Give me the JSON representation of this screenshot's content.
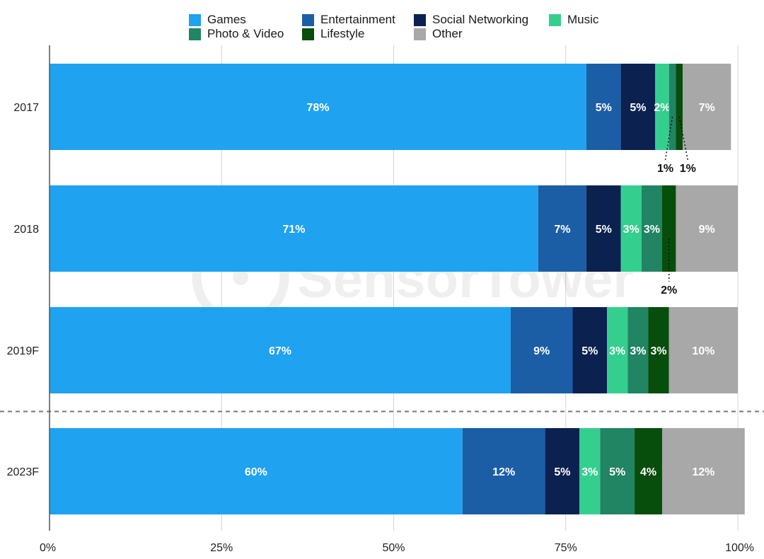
{
  "chart_data": {
    "type": "bar",
    "orientation": "horizontal",
    "stacked": true,
    "title": "",
    "xlabel": "",
    "ylabel": "",
    "xlim": [
      0,
      100
    ],
    "x_ticks": [
      "0%",
      "25%",
      "50%",
      "75%",
      "100%"
    ],
    "categories": [
      "2017",
      "2018",
      "2019F",
      "2023F"
    ],
    "series": [
      {
        "name": "Games",
        "color": "#1fa2f0",
        "values": [
          78,
          71,
          67,
          60
        ],
        "labels": [
          "78%",
          "71%",
          "67%",
          "60%"
        ]
      },
      {
        "name": "Entertainment",
        "color": "#1b5ea6",
        "values": [
          5,
          7,
          9,
          12
        ],
        "labels": [
          "5%",
          "7%",
          "9%",
          "12%"
        ]
      },
      {
        "name": "Social Networking",
        "color": "#0b2150",
        "values": [
          5,
          5,
          5,
          5
        ],
        "labels": [
          "5%",
          "5%",
          "5%",
          "5%"
        ]
      },
      {
        "name": "Music",
        "color": "#34cf8f",
        "values": [
          2,
          3,
          3,
          3
        ],
        "labels": [
          "2%",
          "3%",
          "3%",
          "3%"
        ]
      },
      {
        "name": "Photo & Video",
        "color": "#218463",
        "values": [
          1,
          3,
          3,
          5
        ],
        "labels": [
          "1%",
          "3%",
          "3%",
          "5%"
        ]
      },
      {
        "name": "Lifestyle",
        "color": "#074d0b",
        "values": [
          1,
          2,
          3,
          4
        ],
        "labels": [
          "1%",
          "2%",
          "3%",
          "4%"
        ]
      },
      {
        "name": "Other",
        "color": "#a8a8a8",
        "values": [
          7,
          9,
          10,
          12
        ],
        "labels": [
          "7%",
          "9%",
          "10%",
          "12%"
        ]
      }
    ],
    "callouts": [
      {
        "category": "2017",
        "series": "Photo & Video",
        "label": "1%"
      },
      {
        "category": "2017",
        "series": "Lifestyle",
        "label": "1%"
      },
      {
        "category": "2018",
        "series": "Lifestyle",
        "label": "2%"
      }
    ],
    "forecast_separator_after": "2019F",
    "legend": {
      "position": "top",
      "entries": [
        "Games",
        "Entertainment",
        "Social Networking",
        "Music",
        "Photo & Video",
        "Lifestyle",
        "Other"
      ]
    },
    "watermark": "SensorTower"
  }
}
